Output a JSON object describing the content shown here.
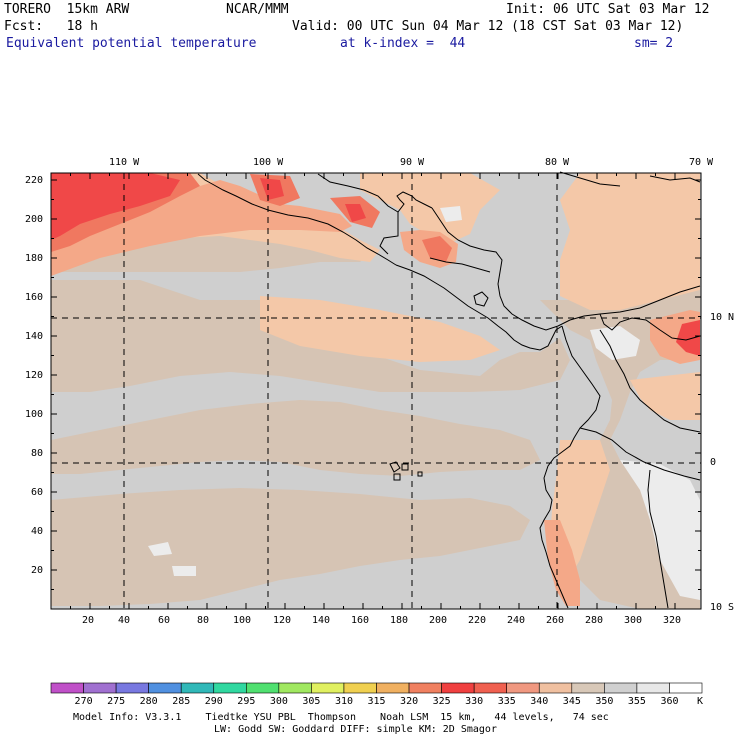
{
  "header": {
    "model": "TORERO  15km ARW",
    "org": "NCAR/MMM",
    "init": "Init: 06 UTC Sat 03 Mar 12",
    "fcst": "Fcst:   18 h",
    "valid": "Valid: 00 UTC Sun 04 Mar 12 (18 CST Sat 03 Mar 12)",
    "field": "Equivalent potential temperature",
    "level": "at k-index =  44",
    "smooth": "sm= 2"
  },
  "axes": {
    "top_lon": [
      "110 W",
      "100 W",
      "90 W",
      "80 W",
      "70 W"
    ],
    "right_lat": [
      "10 N",
      "0",
      "10 S"
    ],
    "left_y": [
      "220",
      "200",
      "180",
      "160",
      "140",
      "120",
      "100",
      "80",
      "60",
      "40",
      "20"
    ],
    "bottom_x": [
      "20",
      "40",
      "60",
      "80",
      "100",
      "120",
      "140",
      "160",
      "180",
      "200",
      "220",
      "240",
      "260",
      "280",
      "300",
      "320"
    ]
  },
  "colorbar": {
    "labels": [
      "270",
      "275",
      "280",
      "285",
      "290",
      "295",
      "300",
      "305",
      "310",
      "315",
      "320",
      "325",
      "330",
      "335",
      "340",
      "345",
      "350",
      "355",
      "360"
    ],
    "unit": "K",
    "colors": [
      "#c050c8",
      "#a070d0",
      "#7878e0",
      "#5090e0",
      "#30b8b8",
      "#30d8a0",
      "#50e070",
      "#a0e860",
      "#e0f060",
      "#f0d050",
      "#f0b060",
      "#f08060",
      "#f04040",
      "#f06050",
      "#f09880",
      "#f0c0a0",
      "#d8c8b8",
      "#d0d0d0",
      "#e8e8e8",
      "#ffffff"
    ]
  },
  "field_colors": {
    "c330": "#f04848",
    "c335": "#f07860",
    "c340": "#f4a888",
    "c345": "#f4c8a8",
    "c350": "#d6c4b4",
    "c355": "#cfcfcf",
    "c360": "#ececec"
  },
  "footer": {
    "line1": "Model Info: V3.3.1    Tiedtke YSU PBL  Thompson    Noah LSM  15 km,   44 levels,   74 sec",
    "line2": "LW: Godd SW: Goddard DIFF: simple KM: 2D Smagor"
  }
}
